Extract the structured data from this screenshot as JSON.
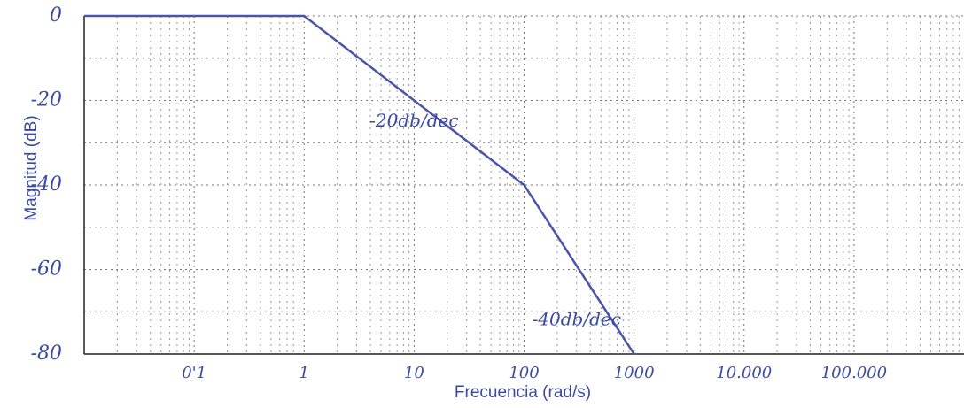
{
  "chart_data": {
    "type": "line",
    "x_label": "Frecuencia (rad/s)",
    "y_label": "Magnitud (dB)",
    "x": [
      0.01,
      1,
      100,
      1000
    ],
    "series": [
      {
        "color": "#4a55a8",
        "values": [
          0,
          0,
          -40,
          -80
        ]
      }
    ],
    "log_x": true,
    "xlim": [
      0.01,
      1000000
    ],
    "xticks": [
      {
        "value": 0.1,
        "label": "0'1"
      },
      1,
      10,
      100,
      1000,
      {
        "value": 10000,
        "label": "10.000"
      },
      {
        "value": 100000,
        "label": "100.000"
      }
    ],
    "ylim": [
      -80,
      0
    ],
    "yticks": [
      0,
      -20,
      -40,
      -60,
      -80
    ],
    "grid": true,
    "annotations": [
      {
        "text": "-20db/dec",
        "x": 10,
        "y": -25
      },
      {
        "text": "-40db/dec",
        "x": 300,
        "y": -72
      }
    ]
  }
}
